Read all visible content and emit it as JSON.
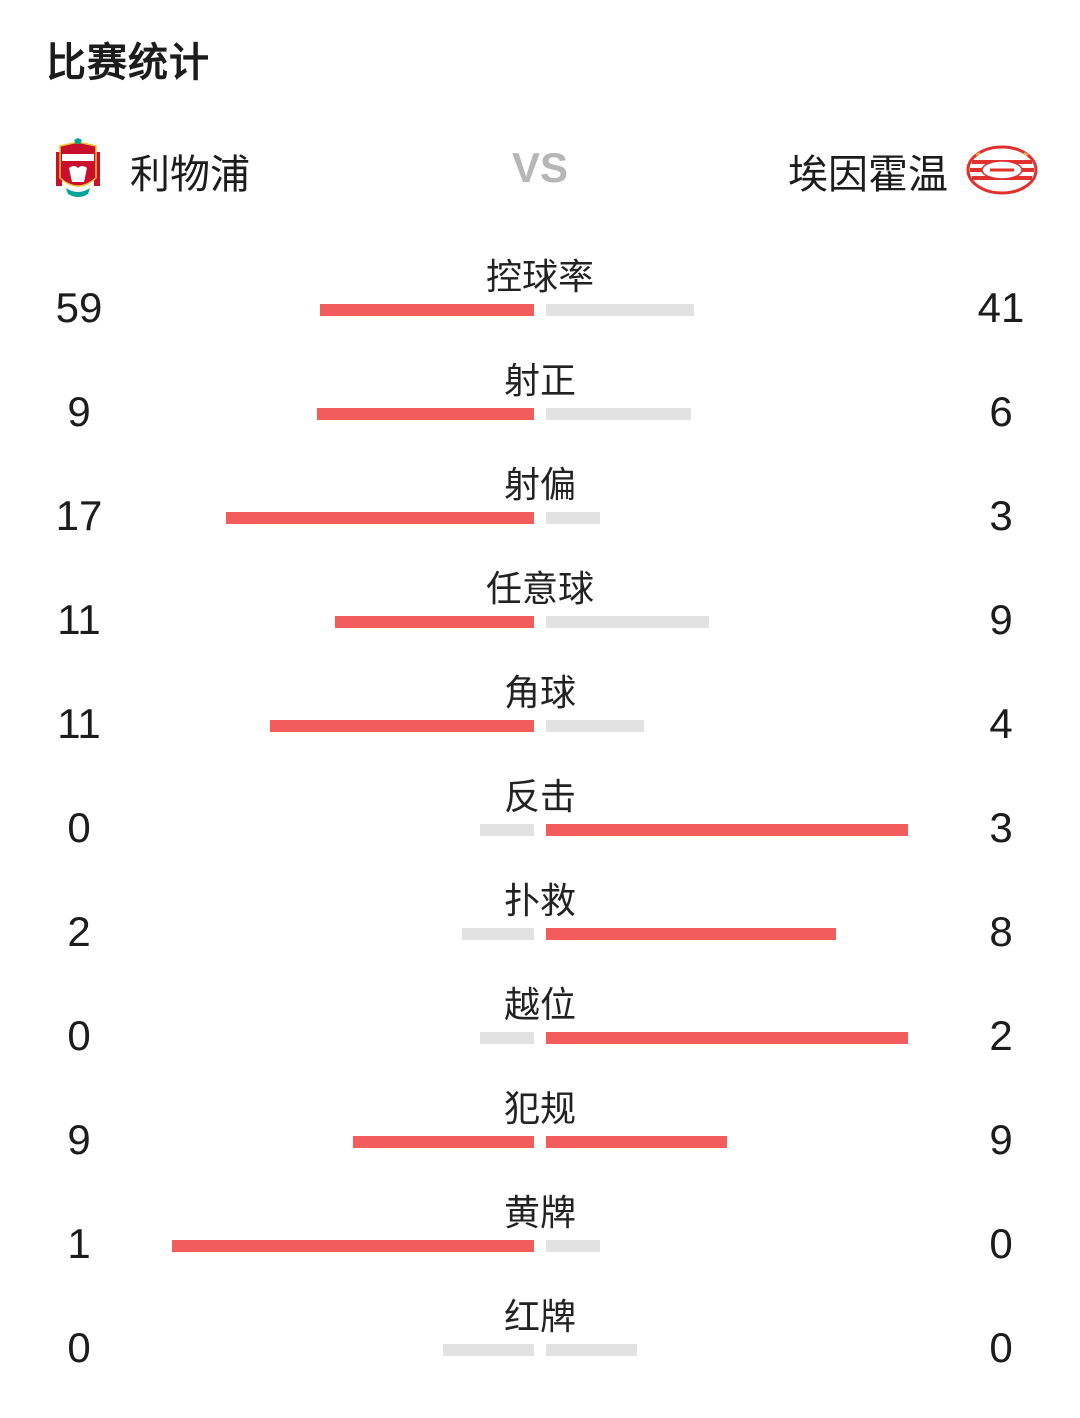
{
  "title": "比赛统计",
  "home_team": {
    "name": "利物浦"
  },
  "vs_label": "VS",
  "away_team": {
    "name": "埃因霍温"
  },
  "colors": {
    "leader": "#f25c5c",
    "other": "#e2e2e2",
    "vs": "#b6b6b6"
  },
  "stats": [
    {
      "label": "控球率",
      "home": 59,
      "away": 41,
      "home_bar": 0.59,
      "away_bar": 0.41
    },
    {
      "label": "射正",
      "home": 9,
      "away": 6,
      "home_bar": 0.6,
      "away_bar": 0.4
    },
    {
      "label": "射偏",
      "home": 17,
      "away": 3,
      "home_bar": 0.85,
      "away_bar": 0.15
    },
    {
      "label": "任意球",
      "home": 11,
      "away": 9,
      "home_bar": 0.55,
      "away_bar": 0.45
    },
    {
      "label": "角球",
      "home": 11,
      "away": 4,
      "home_bar": 0.73,
      "away_bar": 0.27
    },
    {
      "label": "反击",
      "home": 0,
      "away": 3,
      "home_bar": 0.15,
      "away_bar": 1.0
    },
    {
      "label": "扑救",
      "home": 2,
      "away": 8,
      "home_bar": 0.2,
      "away_bar": 0.8
    },
    {
      "label": "越位",
      "home": 0,
      "away": 2,
      "home_bar": 0.15,
      "away_bar": 1.0
    },
    {
      "label": "犯规",
      "home": 9,
      "away": 9,
      "home_bar": 0.5,
      "away_bar": 0.5
    },
    {
      "label": "黄牌",
      "home": 1,
      "away": 0,
      "home_bar": 1.0,
      "away_bar": 0.15
    },
    {
      "label": "红牌",
      "home": 0,
      "away": 0,
      "home_bar": 0.25,
      "away_bar": 0.25
    }
  ]
}
